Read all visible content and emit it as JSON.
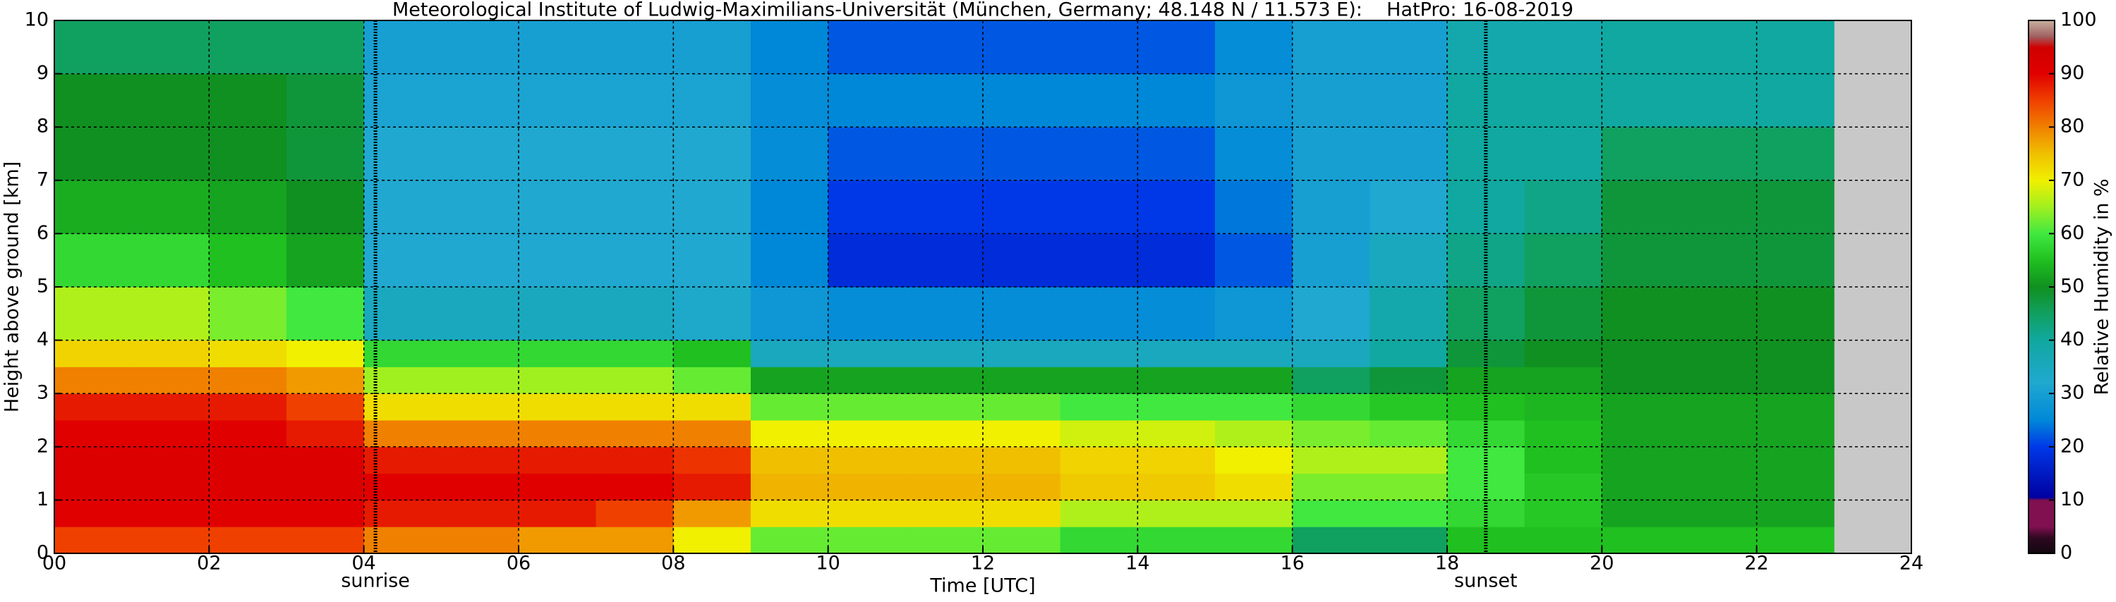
{
  "chart_data": {
    "type": "heatmap",
    "title": "Meteorological Institute of Ludwig-Maximilians-Universität (München, Germany; 48.148 N / 11.573 E):    HatPro: 16-08-2019",
    "xlabel": "Time [UTC]",
    "ylabel": "Height above ground [km]",
    "colorbar_label": "Relative Humidity in %",
    "x": [
      0,
      1,
      2,
      3,
      4,
      5,
      6,
      7,
      8,
      9,
      10,
      11,
      12,
      13,
      14,
      15,
      16,
      17,
      18,
      19,
      20,
      21,
      22,
      23
    ],
    "y": [
      0,
      0.5,
      1,
      1.5,
      2,
      2.5,
      3,
      3.5,
      4,
      5,
      6,
      7,
      8,
      9,
      10
    ],
    "values": [
      [
        85,
        85,
        85,
        85,
        80,
        80,
        78,
        78,
        70,
        62,
        62,
        62,
        62,
        58,
        58,
        58,
        45,
        45,
        55,
        55,
        55,
        55,
        55
      ],
      [
        90,
        90,
        90,
        90,
        88,
        88,
        88,
        85,
        78,
        72,
        72,
        72,
        72,
        66,
        66,
        66,
        60,
        60,
        58,
        56,
        52,
        52,
        52
      ],
      [
        91,
        91,
        91,
        91,
        90,
        90,
        90,
        90,
        88,
        76,
        76,
        76,
        76,
        74,
        74,
        72,
        63,
        63,
        60,
        56,
        52,
        52,
        52
      ],
      [
        91,
        91,
        91,
        91,
        88,
        88,
        88,
        88,
        86,
        75,
        75,
        75,
        75,
        73,
        73,
        70,
        66,
        66,
        60,
        55,
        52,
        52,
        52
      ],
      [
        90,
        90,
        90,
        88,
        80,
        80,
        80,
        80,
        80,
        70,
        70,
        70,
        70,
        68,
        68,
        66,
        63,
        62,
        58,
        55,
        52,
        52,
        52
      ],
      [
        88,
        88,
        88,
        85,
        72,
        72,
        72,
        72,
        72,
        62,
        62,
        62,
        62,
        60,
        60,
        60,
        58,
        56,
        55,
        54,
        52,
        52,
        52
      ],
      [
        80,
        80,
        80,
        78,
        65,
        65,
        65,
        65,
        62,
        52,
        52,
        52,
        52,
        52,
        52,
        52,
        45,
        48,
        52,
        52,
        50,
        50,
        50
      ],
      [
        73,
        73,
        72,
        70,
        58,
        58,
        58,
        58,
        55,
        35,
        35,
        35,
        35,
        35,
        35,
        35,
        35,
        40,
        48,
        50,
        50,
        50,
        50
      ],
      [
        66,
        66,
        63,
        60,
        35,
        35,
        35,
        35,
        33,
        28,
        26,
        26,
        26,
        26,
        26,
        28,
        32,
        38,
        45,
        48,
        50,
        50,
        50
      ],
      [
        58,
        58,
        55,
        52,
        32,
        32,
        32,
        32,
        32,
        25,
        18,
        18,
        18,
        18,
        18,
        22,
        30,
        35,
        42,
        45,
        48,
        48,
        48
      ],
      [
        53,
        53,
        52,
        50,
        32,
        32,
        32,
        32,
        32,
        25,
        20,
        20,
        20,
        20,
        20,
        24,
        30,
        32,
        40,
        42,
        48,
        48,
        48
      ],
      [
        50,
        50,
        50,
        48,
        32,
        32,
        32,
        32,
        32,
        26,
        22,
        22,
        22,
        22,
        22,
        26,
        30,
        30,
        40,
        40,
        45,
        45,
        45
      ],
      [
        50,
        50,
        50,
        48,
        31,
        31,
        31,
        31,
        31,
        26,
        25,
        25,
        25,
        25,
        25,
        28,
        30,
        30,
        40,
        40,
        40,
        40,
        40
      ],
      [
        45,
        45,
        45,
        45,
        30,
        30,
        30,
        30,
        30,
        25,
        22,
        22,
        22,
        22,
        22,
        26,
        30,
        30,
        38,
        38,
        40,
        40,
        40
      ]
    ],
    "xlim": [
      0,
      24
    ],
    "ylim": [
      0,
      10
    ],
    "clim": [
      0,
      100
    ],
    "xticks": [
      {
        "value": 0,
        "label": "00"
      },
      {
        "value": 2,
        "label": "02"
      },
      {
        "value": 4,
        "label": "04"
      },
      {
        "value": 6,
        "label": "06"
      },
      {
        "value": 8,
        "label": "08"
      },
      10,
      12,
      14,
      16,
      18,
      20,
      22,
      24
    ],
    "yticks": [
      0,
      1,
      2,
      3,
      4,
      5,
      6,
      7,
      8,
      9,
      10
    ],
    "cticks": [
      0,
      10,
      20,
      30,
      40,
      50,
      60,
      70,
      80,
      90,
      100
    ],
    "colorscale": [
      [
        0,
        "#100810"
      ],
      [
        3,
        "#300820"
      ],
      [
        5,
        "#801050"
      ],
      [
        10,
        "#801050"
      ],
      [
        10.5,
        "#0000a0"
      ],
      [
        20,
        "#0038e8"
      ],
      [
        25,
        "#0088d8"
      ],
      [
        32,
        "#20a8d0"
      ],
      [
        40,
        "#10a8a0"
      ],
      [
        45,
        "#10a060"
      ],
      [
        50,
        "#109020"
      ],
      [
        55,
        "#20c020"
      ],
      [
        60,
        "#40e840"
      ],
      [
        65,
        "#a0f020"
      ],
      [
        70,
        "#f0f000"
      ],
      [
        75,
        "#f0c000"
      ],
      [
        80,
        "#f08000"
      ],
      [
        85,
        "#f04000"
      ],
      [
        90,
        "#e00000"
      ],
      [
        95,
        "#d00000"
      ],
      [
        97,
        "#a06060"
      ],
      [
        100,
        "#c8b0a0"
      ]
    ],
    "grid": true,
    "annotations": [
      {
        "text": "sunrise",
        "x": 4.15
      },
      {
        "text": "sunset",
        "x": 18.5
      }
    ]
  }
}
